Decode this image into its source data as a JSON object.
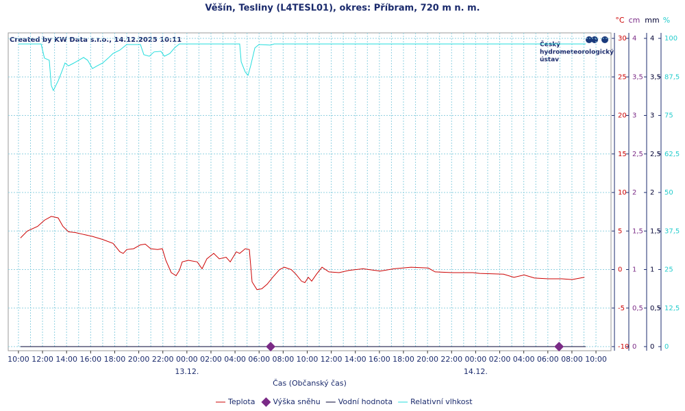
{
  "chart_data": {
    "type": "line",
    "title": "Věšín, Tesliny (L4TESL01), okres: Příbram, 720 m n. m.",
    "subtitle": "Created by KW Data s.r.o., 14.12.2025 10:11",
    "logo": [
      "Český",
      "hydrometeorologický",
      "ústav"
    ],
    "x_label": "Čas (Občanský čas)",
    "xlim": [
      9.15,
      59.25
    ],
    "xticks": [
      {
        "value": 10,
        "label": "10:00"
      },
      {
        "value": 12,
        "label": "12:00"
      },
      {
        "value": 14,
        "label": "14:00"
      },
      {
        "value": 16,
        "label": "16:00"
      },
      {
        "value": 18,
        "label": "18:00"
      },
      {
        "value": 20,
        "label": "20:00"
      },
      {
        "value": 22,
        "label": "22:00"
      },
      {
        "value": 24,
        "label": "00:00"
      },
      {
        "value": 26,
        "label": "02:00"
      },
      {
        "value": 28,
        "label": "04:00"
      },
      {
        "value": 30,
        "label": "06:00"
      },
      {
        "value": 32,
        "label": "08:00"
      },
      {
        "value": 34,
        "label": "10:00"
      },
      {
        "value": 36,
        "label": "12:00"
      },
      {
        "value": 38,
        "label": "14:00"
      },
      {
        "value": 40,
        "label": "16:00"
      },
      {
        "value": 42,
        "label": "18:00"
      },
      {
        "value": 44,
        "label": "20:00"
      },
      {
        "value": 46,
        "label": "22:00"
      },
      {
        "value": 48,
        "label": "00:00"
      },
      {
        "value": 50,
        "label": "02:00"
      },
      {
        "value": 52,
        "label": "04:00"
      },
      {
        "value": 54,
        "label": "06:00"
      },
      {
        "value": 56,
        "label": "08:00"
      },
      {
        "value": 58,
        "label": "10:00"
      }
    ],
    "xminorticks": [
      11,
      13,
      15,
      17,
      19,
      21,
      23,
      25,
      27,
      29,
      31,
      33,
      35,
      37,
      39,
      41,
      43,
      45,
      47,
      49,
      51,
      53,
      55,
      57
    ],
    "date_ticks": [
      {
        "value": 24,
        "label": "13.12."
      },
      {
        "value": 48,
        "label": "14.12."
      }
    ],
    "grid": true,
    "ylim": [
      -10,
      30
    ],
    "yticks": [
      -10,
      -5,
      0,
      5,
      10,
      15,
      20,
      25,
      30
    ],
    "y2lim": [
      0,
      4
    ],
    "y2ticks": [
      0,
      {
        "value": 0.5,
        "label": "0,5"
      },
      1,
      {
        "value": 1.5,
        "label": "1,5"
      },
      2,
      {
        "value": 2.5,
        "label": "2,5"
      },
      3,
      {
        "value": 3.5,
        "label": "3,5"
      },
      4
    ],
    "y3lim": [
      0,
      4
    ],
    "y3ticks": [
      0,
      {
        "value": 0.5,
        "label": "0,5"
      },
      1,
      {
        "value": 1.5,
        "label": "1,5"
      },
      2,
      {
        "value": 2.5,
        "label": "2,5"
      },
      3,
      {
        "value": 3.5,
        "label": "3,5"
      },
      4
    ],
    "y4lim": [
      0,
      100
    ],
    "y4ticks": [
      0,
      {
        "value": 12.5,
        "label": "12,5"
      },
      25,
      {
        "value": 37.5,
        "label": "37,5"
      },
      50,
      {
        "value": 62.5,
        "label": "62,5"
      },
      75,
      {
        "value": 87.5,
        "label": "87,5"
      },
      100
    ],
    "axis_units": {
      "y": "°C",
      "y2": "cm",
      "y3": "mm",
      "y4": "%"
    },
    "axis_colors": {
      "y": "#cc0000",
      "y2": "#7a2a86",
      "y3": "#000033",
      "y4": "#22cccc"
    },
    "series": [
      {
        "name": "Teplota",
        "color": "#cc0000",
        "axis": "y",
        "marker": "line",
        "x": [
          10.17,
          10.74,
          11.59,
          12.16,
          12.73,
          13.3,
          13.7,
          14.16,
          14.73,
          15.3,
          16.15,
          17.0,
          17.86,
          18.43,
          18.71,
          19.0,
          19.57,
          20.14,
          20.54,
          20.99,
          21.56,
          21.96,
          22.25,
          22.7,
          23.1,
          23.38,
          23.61,
          24.12,
          24.86,
          25.26,
          25.66,
          26.23,
          26.69,
          27.26,
          27.6,
          28.11,
          28.39,
          28.85,
          29.19,
          29.42,
          29.82,
          30.22,
          30.67,
          31.13,
          31.7,
          32.1,
          32.67,
          33.06,
          33.52,
          33.8,
          34.09,
          34.37,
          34.77,
          35.23,
          35.8,
          36.65,
          37.51,
          38.64,
          40.07,
          41.21,
          42.63,
          44.06,
          44.63,
          46.05,
          47.76,
          48.33,
          50.32,
          51.18,
          52.03,
          52.89,
          54.02,
          55.16,
          56.01,
          57.04
        ],
        "values": [
          4.1,
          5.0,
          5.6,
          6.4,
          6.9,
          6.7,
          5.6,
          4.9,
          4.8,
          4.6,
          4.3,
          3.9,
          3.4,
          2.3,
          2.1,
          2.6,
          2.7,
          3.2,
          3.3,
          2.7,
          2.6,
          2.7,
          1.2,
          -0.4,
          -0.8,
          -0.1,
          1.0,
          1.2,
          1.0,
          0.1,
          1.4,
          2.1,
          1.4,
          1.6,
          1.0,
          2.3,
          2.1,
          2.7,
          2.6,
          -1.6,
          -2.6,
          -2.5,
          -1.9,
          -1.0,
          0.0,
          0.3,
          0.0,
          -0.6,
          -1.5,
          -1.7,
          -1.0,
          -1.5,
          -0.6,
          0.3,
          -0.3,
          -0.4,
          -0.1,
          0.1,
          -0.2,
          0.1,
          0.3,
          0.2,
          -0.3,
          -0.4,
          -0.4,
          -0.5,
          -0.6,
          -1.0,
          -0.7,
          -1.1,
          -1.2,
          -1.2,
          -1.3,
          -1.0
        ]
      },
      {
        "name": "Výška sněhu",
        "color": "#7a2a86",
        "axis": "y2",
        "marker": "diamond",
        "x": [
          30.96,
          54.93
        ],
        "values": [
          0,
          0
        ]
      },
      {
        "name": "Vodní hodnota",
        "color": "#000033",
        "axis": "y3",
        "marker": "line",
        "x": [
          10.17,
          57.15
        ],
        "values": [
          0,
          0
        ]
      },
      {
        "name": "Relativní vlhkost",
        "color": "#22dddd",
        "axis": "y4",
        "marker": "line",
        "x": [
          10,
          11.88,
          12.16,
          12.56,
          12.73,
          12.9,
          13.3,
          13.59,
          13.87,
          14.16,
          14.61,
          15.01,
          15.41,
          15.75,
          16.15,
          16.55,
          17.0,
          17.46,
          17.86,
          18.43,
          19.0,
          20.14,
          20.42,
          20.88,
          21.27,
          21.84,
          22.13,
          22.58,
          22.98,
          23.38,
          28.39,
          28.51,
          28.85,
          29.08,
          29.31,
          29.65,
          29.99,
          30.96,
          31.25,
          57.15
        ],
        "values": [
          98.2,
          98.2,
          93.6,
          92.9,
          84.7,
          83.1,
          86.2,
          89.1,
          92.0,
          91.1,
          92.0,
          92.9,
          93.8,
          92.9,
          90.2,
          91.1,
          92.0,
          93.6,
          95.1,
          96.2,
          98.0,
          98.0,
          94.7,
          94.2,
          95.6,
          95.8,
          94.2,
          95.1,
          96.9,
          98.2,
          98.2,
          92.4,
          89.1,
          88.0,
          91.3,
          96.9,
          98.0,
          97.8,
          98.2,
          98.2
        ]
      }
    ]
  }
}
